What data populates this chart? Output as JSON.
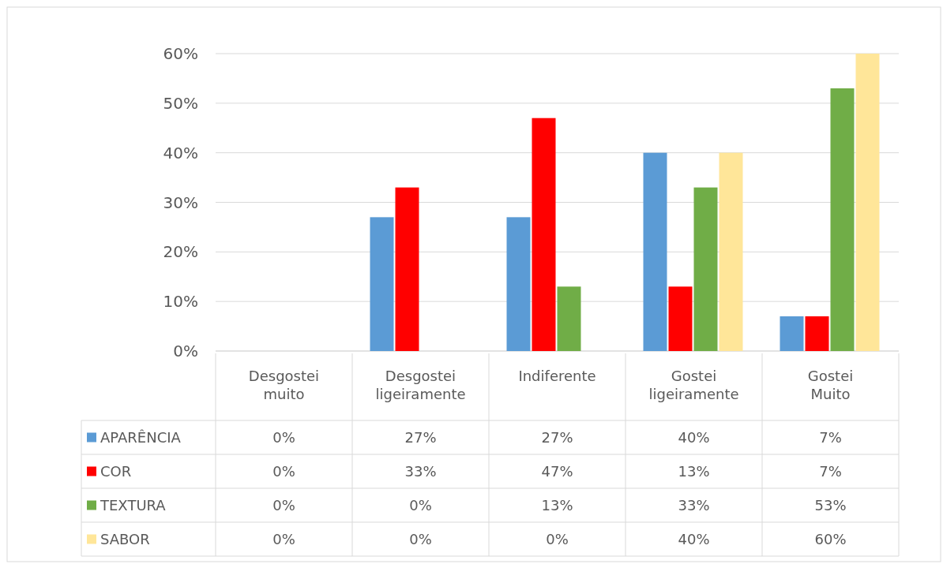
{
  "chart_data": {
    "type": "bar",
    "categories": [
      "Desgostei muito",
      "Desgostei ligeiramente",
      "Indiferente",
      "Gostei ligeiramente",
      "Gostei Muito"
    ],
    "series": [
      {
        "name": "APARÊNCIA",
        "color": "#5b9bd5",
        "values": [
          0,
          27,
          27,
          40,
          7
        ],
        "value_labels": [
          "0%",
          "27%",
          "27%",
          "40%",
          "7%"
        ]
      },
      {
        "name": "COR",
        "color": "#ff0000",
        "values": [
          0,
          33,
          47,
          13,
          7
        ],
        "value_labels": [
          "0%",
          "33%",
          "47%",
          "13%",
          "7%"
        ]
      },
      {
        "name": "TEXTURA",
        "color": "#70ad47",
        "values": [
          0,
          0,
          13,
          33,
          53
        ],
        "value_labels": [
          "0%",
          "0%",
          "13%",
          "33%",
          "53%"
        ]
      },
      {
        "name": "SABOR",
        "color": "#ffe699",
        "values": [
          0,
          0,
          0,
          40,
          60
        ],
        "value_labels": [
          "0%",
          "0%",
          "0%",
          "40%",
          "60%"
        ]
      }
    ],
    "ylim": [
      0,
      60
    ],
    "yticks": [
      {
        "value": 0,
        "label": "0%"
      },
      {
        "value": 10,
        "label": "10%"
      },
      {
        "value": 20,
        "label": "20%"
      },
      {
        "value": 30,
        "label": "30%"
      },
      {
        "value": 40,
        "label": "40%"
      },
      {
        "value": 50,
        "label": "50%"
      },
      {
        "value": 60,
        "label": "60%"
      }
    ],
    "grid": "y",
    "legend": "bottom left"
  }
}
